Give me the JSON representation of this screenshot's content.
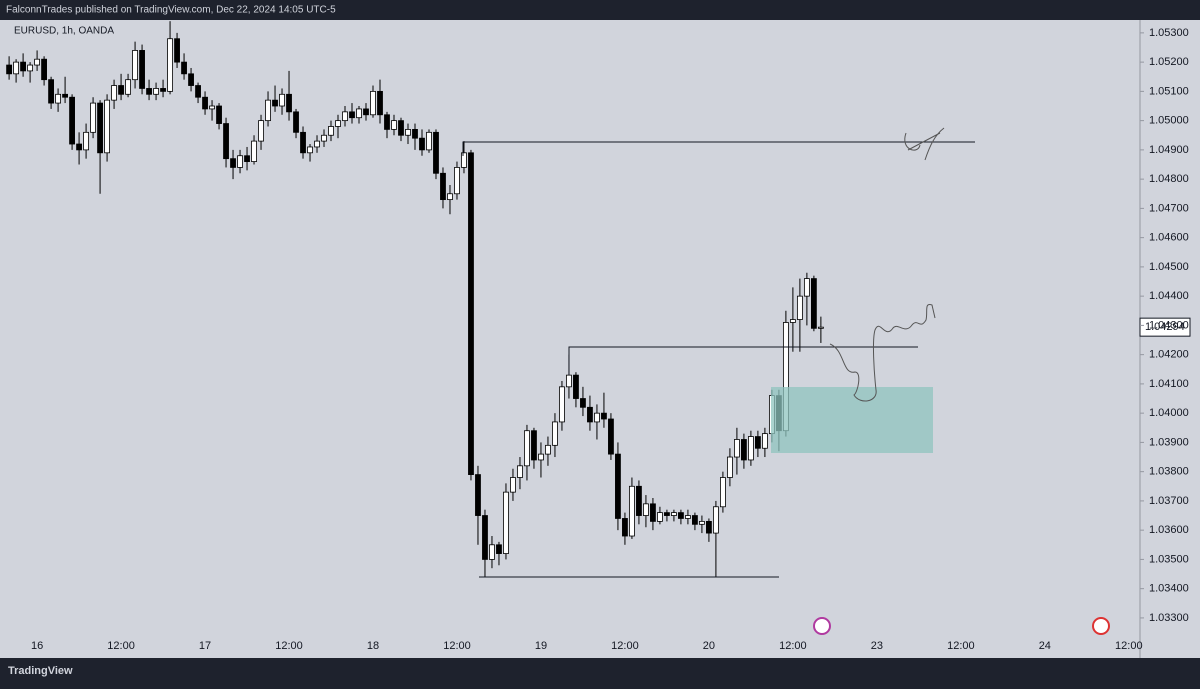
{
  "header": "FalconnTrades published on TradingView.com, Dec 22, 2024 14:05 UTC-5",
  "brand": "TradingView",
  "chart_data": {
    "type": "candlestick",
    "title": "EURUSD, 1h, OANDA",
    "x": [
      -4,
      -3,
      -2,
      -1,
      0,
      1,
      2,
      3,
      4,
      5,
      6,
      7,
      8,
      9,
      10,
      11,
      12,
      13,
      14,
      15,
      16,
      17,
      18,
      19,
      20,
      21,
      22,
      23,
      24,
      25,
      26,
      27,
      28,
      29,
      30,
      31,
      32,
      33,
      34,
      35,
      36,
      37,
      38,
      39,
      40,
      41,
      42,
      43,
      44,
      45,
      46,
      47,
      48,
      49,
      50,
      51,
      52,
      53,
      54,
      55,
      56,
      57,
      58,
      59,
      60,
      61,
      62,
      63,
      64,
      65,
      66,
      67,
      68,
      69,
      70,
      71,
      72,
      73,
      74,
      75,
      76,
      77,
      78,
      79,
      80,
      81,
      82,
      83,
      84,
      85,
      86,
      87,
      88,
      89,
      90,
      91,
      92,
      93,
      94,
      95,
      96,
      97,
      98,
      99,
      100,
      101,
      102,
      103,
      104,
      105,
      106,
      107,
      108,
      109,
      110,
      111,
      112
    ],
    "open": [
      1.0519,
      1.0516,
      1.052,
      1.0517,
      1.0519,
      1.0521,
      1.0514,
      1.0506,
      1.0509,
      1.0508,
      1.0492,
      1.049,
      1.0496,
      1.0506,
      1.0489,
      1.0507,
      1.0512,
      1.0509,
      1.0514,
      1.0524,
      1.0511,
      1.0509,
      1.0511,
      1.051,
      1.0528,
      1.052,
      1.0516,
      1.0512,
      1.0508,
      1.0504,
      1.0505,
      1.0499,
      1.0487,
      1.0484,
      1.0488,
      1.0486,
      1.0493,
      1.05,
      1.0507,
      1.0505,
      1.0509,
      1.0503,
      1.0496,
      1.0489,
      1.0491,
      1.0493,
      1.0495,
      1.0498,
      1.05,
      1.0503,
      1.0501,
      1.0504,
      1.0502,
      1.051,
      1.0502,
      1.0497,
      1.05,
      1.0495,
      1.0497,
      1.0494,
      1.049,
      1.0496,
      1.0482,
      1.0473,
      1.0475,
      1.0484,
      1.0489,
      1.0379,
      1.0365,
      1.035,
      1.0355,
      1.0352,
      1.0373,
      1.0378,
      1.0382,
      1.0394,
      1.0384,
      1.0386,
      1.0389,
      1.0397,
      1.0409,
      1.0413,
      1.0405,
      1.0402,
      1.0397,
      1.04,
      1.0398,
      1.0386,
      1.0364,
      1.0358,
      1.0375,
      1.0365,
      1.0369,
      1.0363,
      1.0366,
      1.0365,
      1.0366,
      1.0364,
      1.0365,
      1.0362,
      1.0363,
      1.0359,
      1.0368,
      1.0378,
      1.0385,
      1.0391,
      1.0384,
      1.0392,
      1.0388,
      1.0393,
      1.0406,
      1.0394,
      1.0431,
      1.0432,
      1.044,
      1.0446,
      1.0429
    ],
    "high": [
      1.0522,
      1.0521,
      1.0523,
      1.052,
      1.0524,
      1.0522,
      1.0515,
      1.0511,
      1.0515,
      1.0509,
      1.0496,
      1.0499,
      1.0508,
      1.0507,
      1.0509,
      1.0514,
      1.0516,
      1.0516,
      1.0527,
      1.0526,
      1.0514,
      1.0513,
      1.0514,
      1.0534,
      1.053,
      1.0523,
      1.0518,
      1.0513,
      1.051,
      1.0507,
      1.0506,
      1.0501,
      1.049,
      1.049,
      1.0491,
      1.0495,
      1.0502,
      1.051,
      1.0512,
      1.0511,
      1.0517,
      1.0504,
      1.0498,
      1.0492,
      1.0495,
      1.0497,
      1.05,
      1.0502,
      1.0505,
      1.0506,
      1.0505,
      1.0506,
      1.0512,
      1.0514,
      1.0503,
      1.0502,
      1.0501,
      1.0499,
      1.0499,
      1.0497,
      1.0497,
      1.0497,
      1.0484,
      1.0478,
      1.0486,
      1.0493,
      1.049,
      1.0382,
      1.0367,
      1.0358,
      1.0356,
      1.0376,
      1.0381,
      1.0385,
      1.0396,
      1.0395,
      1.039,
      1.0392,
      1.04,
      1.0411,
      1.042,
      1.0414,
      1.0409,
      1.0406,
      1.0403,
      1.0407,
      1.04,
      1.039,
      1.0366,
      1.0378,
      1.0377,
      1.0372,
      1.0371,
      1.0368,
      1.0367,
      1.0367,
      1.0367,
      1.0367,
      1.0366,
      1.0365,
      1.0364,
      1.037,
      1.038,
      1.0388,
      1.0395,
      1.0393,
      1.0394,
      1.0394,
      1.0395,
      1.0408,
      1.0408,
      1.0435,
      1.0443,
      1.0446,
      1.0448,
      1.0447,
      1.0433
    ],
    "low": [
      1.0514,
      1.0513,
      1.0515,
      1.0513,
      1.0517,
      1.0512,
      1.0504,
      1.0503,
      1.0506,
      1.049,
      1.0485,
      1.0487,
      1.0494,
      1.0475,
      1.0486,
      1.0504,
      1.0507,
      1.0508,
      1.0511,
      1.0509,
      1.0507,
      1.0507,
      1.0508,
      1.0509,
      1.0518,
      1.0514,
      1.051,
      1.0506,
      1.0502,
      1.05,
      1.0497,
      1.0484,
      1.048,
      1.0482,
      1.0483,
      1.0485,
      1.049,
      1.0498,
      1.0503,
      1.0502,
      1.05,
      1.0494,
      1.0487,
      1.0486,
      1.0489,
      1.0491,
      1.0493,
      1.0494,
      1.0498,
      1.0499,
      1.0499,
      1.05,
      1.0501,
      1.0499,
      1.0494,
      1.0495,
      1.0493,
      1.0492,
      1.049,
      1.0488,
      1.0489,
      1.048,
      1.047,
      1.0468,
      1.0473,
      1.0482,
      1.0377,
      1.0355,
      1.0344,
      1.0347,
      1.0348,
      1.035,
      1.037,
      1.0374,
      1.0377,
      1.0381,
      1.0378,
      1.0382,
      1.0385,
      1.0394,
      1.0405,
      1.0402,
      1.0399,
      1.0394,
      1.0391,
      1.0395,
      1.0384,
      1.036,
      1.0355,
      1.0357,
      1.0362,
      1.0361,
      1.036,
      1.0362,
      1.0363,
      1.0363,
      1.0362,
      1.0362,
      1.036,
      1.0359,
      1.0356,
      1.0344,
      1.0366,
      1.0375,
      1.0379,
      1.0381,
      1.0382,
      1.0385,
      1.0385,
      1.039,
      1.0387,
      1.0392,
      1.0421,
      1.0421,
      1.043,
      1.0428,
      1.0424
    ],
    "close": [
      1.0516,
      1.052,
      1.0517,
      1.0519,
      1.0521,
      1.0514,
      1.0506,
      1.0509,
      1.0508,
      1.0492,
      1.049,
      1.0496,
      1.0506,
      1.0489,
      1.0507,
      1.0512,
      1.0509,
      1.0514,
      1.0524,
      1.0511,
      1.0509,
      1.0511,
      1.051,
      1.0528,
      1.052,
      1.0516,
      1.0512,
      1.0508,
      1.0504,
      1.0505,
      1.0499,
      1.0487,
      1.0484,
      1.0488,
      1.0486,
      1.0493,
      1.05,
      1.0507,
      1.0505,
      1.0509,
      1.0503,
      1.0496,
      1.0489,
      1.0491,
      1.0493,
      1.0495,
      1.0498,
      1.05,
      1.0503,
      1.0501,
      1.0504,
      1.0502,
      1.051,
      1.0502,
      1.0497,
      1.05,
      1.0495,
      1.0497,
      1.0494,
      1.049,
      1.0496,
      1.0482,
      1.0473,
      1.0475,
      1.0484,
      1.0489,
      1.0379,
      1.0365,
      1.035,
      1.0355,
      1.0352,
      1.0373,
      1.0378,
      1.0382,
      1.0394,
      1.0384,
      1.0386,
      1.0389,
      1.0397,
      1.0409,
      1.0413,
      1.0405,
      1.0402,
      1.0397,
      1.04,
      1.0398,
      1.0386,
      1.0364,
      1.0358,
      1.0375,
      1.0365,
      1.0369,
      1.0363,
      1.0366,
      1.0365,
      1.0366,
      1.0364,
      1.0365,
      1.0362,
      1.0363,
      1.0359,
      1.0368,
      1.0378,
      1.0385,
      1.0391,
      1.0384,
      1.0392,
      1.0388,
      1.0393,
      1.0406,
      1.0394,
      1.0431,
      1.0432,
      1.044,
      1.0446,
      1.0429,
      1.04294
    ],
    "up_color": "#ffffff",
    "down_color": "#000000",
    "xlim": [
      -5.3,
      157.6
    ],
    "xticks": [
      {
        "value": 0,
        "label": "16"
      },
      {
        "value": 12,
        "label": "12:00"
      },
      {
        "value": 24,
        "label": "17"
      },
      {
        "value": 36,
        "label": "12:00"
      },
      {
        "value": 48,
        "label": "18"
      },
      {
        "value": 60,
        "label": "12:00"
      },
      {
        "value": 72,
        "label": "19"
      },
      {
        "value": 84,
        "label": "12:00"
      },
      {
        "value": 96,
        "label": "20"
      },
      {
        "value": 108,
        "label": "12:00"
      },
      {
        "value": 120,
        "label": "23"
      },
      {
        "value": 132,
        "label": "12:00"
      },
      {
        "value": 144,
        "label": "24"
      },
      {
        "value": 156,
        "label": "12:00"
      }
    ],
    "ylim": [
      1.03163,
      1.05344
    ],
    "yticks": [
      {
        "value": 1.053,
        "label": "1.05300"
      },
      {
        "value": 1.052,
        "label": "1.05200"
      },
      {
        "value": 1.051,
        "label": "1.05100"
      },
      {
        "value": 1.05,
        "label": "1.05000"
      },
      {
        "value": 1.049,
        "label": "1.04900"
      },
      {
        "value": 1.048,
        "label": "1.04800"
      },
      {
        "value": 1.047,
        "label": "1.04700"
      },
      {
        "value": 1.046,
        "label": "1.04600"
      },
      {
        "value": 1.045,
        "label": "1.04500"
      },
      {
        "value": 1.044,
        "label": "1.04400"
      },
      {
        "value": 1.043,
        "label": "1.04300"
      },
      {
        "value": 1.042,
        "label": "1.04200"
      },
      {
        "value": 1.041,
        "label": "1.04100"
      },
      {
        "value": 1.04,
        "label": "1.04000"
      },
      {
        "value": 1.039,
        "label": "1.03900"
      },
      {
        "value": 1.038,
        "label": "1.03800"
      },
      {
        "value": 1.037,
        "label": "1.03700"
      },
      {
        "value": 1.036,
        "label": "1.03600"
      },
      {
        "value": 1.035,
        "label": "1.03500"
      },
      {
        "value": 1.034,
        "label": "1.03400"
      },
      {
        "value": 1.033,
        "label": "1.03300"
      }
    ]
  }
}
